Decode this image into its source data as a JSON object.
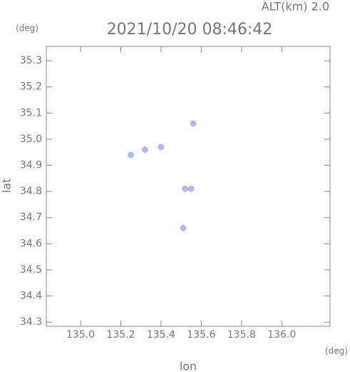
{
  "chart_data": {
    "type": "scatter",
    "title": "2021/10/20 08:46:42",
    "subtitle": "ALT(km) 2.0",
    "y_unit": "(deg)",
    "x_unit": "(deg)",
    "xlabel": "lon",
    "ylabel": "lat",
    "xlim": [
      134.83,
      136.24
    ],
    "ylim": [
      34.284,
      35.355
    ],
    "xticks": [
      {
        "value": 135.0,
        "label": "135.0"
      },
      135.2,
      135.4,
      135.6,
      135.8,
      {
        "value": 136.0,
        "label": "136.0"
      }
    ],
    "yticks": [
      34.3,
      34.4,
      34.5,
      34.6,
      34.7,
      34.8,
      34.9,
      {
        "value": 35.0,
        "label": "35.0"
      },
      35.1,
      35.2,
      35.3
    ],
    "series": [
      {
        "color": "#b8b8f0",
        "x": [
          135.25,
          135.32,
          135.4,
          135.56,
          135.52,
          135.55,
          135.51
        ],
        "values": [
          34.94,
          34.96,
          34.97,
          35.06,
          34.81,
          34.81,
          34.66
        ]
      }
    ]
  }
}
